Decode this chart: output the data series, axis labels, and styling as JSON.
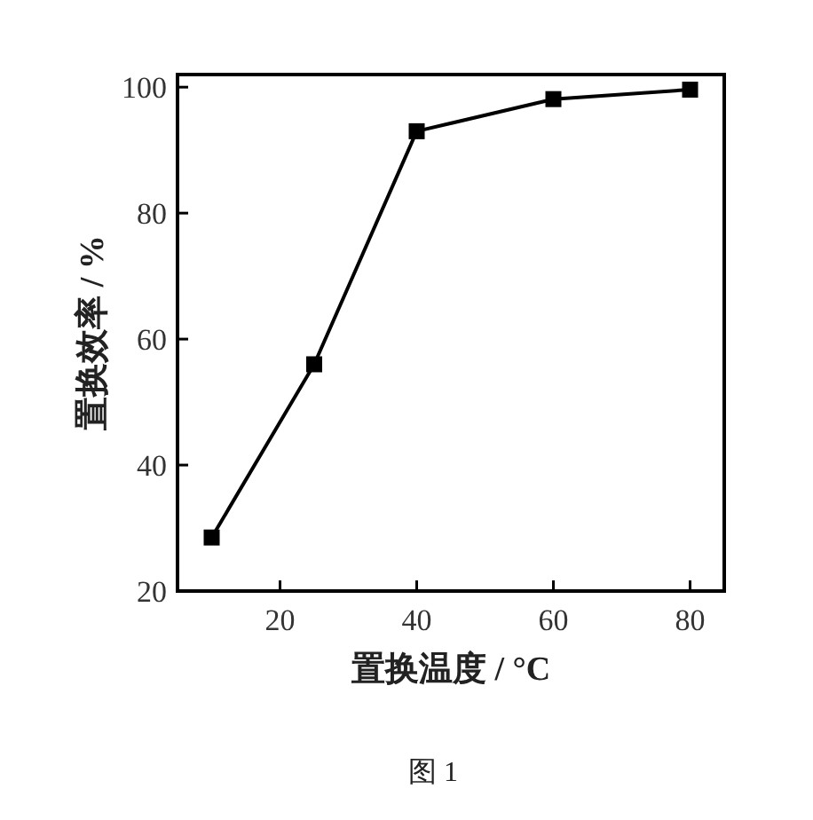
{
  "chart_data": {
    "type": "line",
    "xlabel": "置换温度 / °C",
    "ylabel": "置换效率 / %",
    "annotations": [
      "图 1"
    ],
    "x": [
      10,
      25,
      40,
      60,
      80
    ],
    "series": [
      {
        "color": "#000000",
        "values": [
          28.5,
          56,
          93,
          98.1,
          99.6
        ]
      }
    ],
    "xlim": [
      5,
      85
    ],
    "ylim": [
      20,
      102
    ],
    "xticks": [
      20,
      40,
      60,
      80
    ],
    "yticks": [
      20,
      40,
      60,
      80,
      100
    ],
    "marker": "square",
    "line_style": "solid"
  }
}
